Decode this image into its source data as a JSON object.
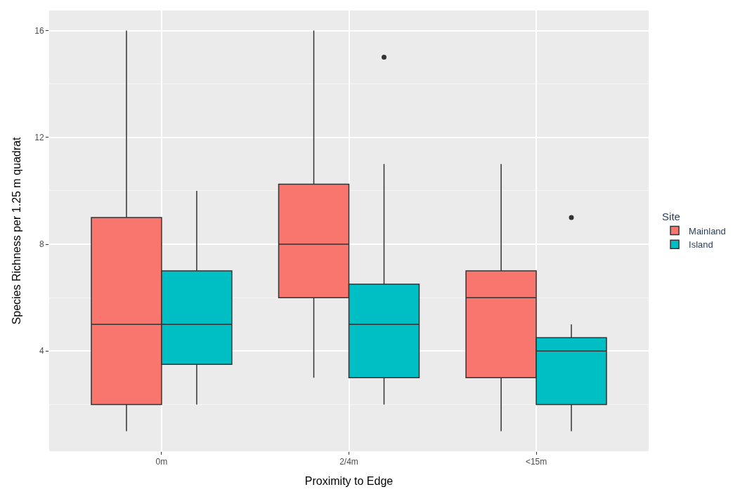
{
  "chart_data": {
    "type": "box",
    "xlabel": "Proximity to Edge",
    "ylabel": "Species Richness per 1.25 m quadrat",
    "categories": [
      "0m",
      "2/4m",
      "<15m"
    ],
    "series": [
      {
        "name": "Mainland",
        "color": "#f8766d",
        "boxes": [
          {
            "low": 1,
            "q1": 2,
            "median": 5,
            "q3": 9,
            "high": 16
          },
          {
            "low": 3,
            "q1": 6,
            "median": 8,
            "q3": 10.25,
            "high": 16
          },
          {
            "low": 1,
            "q1": 3,
            "median": 6,
            "q3": 7,
            "high": 11
          }
        ]
      },
      {
        "name": "Island",
        "color": "#00bfc4",
        "boxes": [
          {
            "low": 2,
            "q1": 3.5,
            "median": 5,
            "q3": 7,
            "high": 10
          },
          {
            "low": 2,
            "q1": 3,
            "median": 5,
            "q3": 6.5,
            "high": 11,
            "outliers": [
              15
            ]
          },
          {
            "low": 1,
            "q1": 2,
            "median": 4,
            "q3": 4.5,
            "high": 5,
            "outliers": [
              9
            ]
          }
        ]
      }
    ],
    "ylim": [
      0.25,
      16.75
    ],
    "yticks": [
      4,
      8,
      12,
      16
    ],
    "grid": true,
    "legend": "right",
    "legend_title": "Site"
  }
}
